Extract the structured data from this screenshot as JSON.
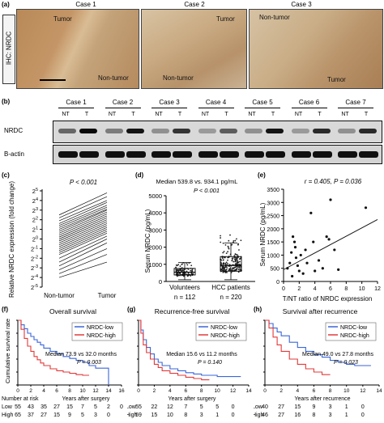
{
  "panel_a": {
    "label": "(a)",
    "ylabel": "IHC: NRDC",
    "cases": [
      {
        "title": "Case 1",
        "labels": [
          "Tumor",
          "Non-tumor"
        ]
      },
      {
        "title": "Case 2",
        "labels": [
          "Tumor",
          "Non-tumor"
        ]
      },
      {
        "title": "Case 3",
        "labels": [
          "Non-tumor",
          "Tumor"
        ]
      }
    ]
  },
  "panel_b": {
    "label": "(b)",
    "cases": [
      "Case 1",
      "Case 2",
      "Case 3",
      "Case 4",
      "Case 5",
      "Case 6",
      "Case 7"
    ],
    "lane_labels": [
      "NT",
      "T"
    ],
    "rows": [
      "NRDC",
      "B-actin"
    ]
  },
  "chart_data": [
    {
      "panel": "(c)",
      "type": "line",
      "title": "P < 0.001",
      "ylabel": "Relative NRDC expression (fold change)",
      "yticks": [
        "2^5",
        "2^4",
        "2^3",
        "2^2",
        "2^1",
        "2^0",
        "2^-1",
        "2^-2",
        "2^-3",
        "2^-4",
        "2^-5"
      ],
      "categories": [
        "Non-tumor",
        "Tumor"
      ],
      "ylim_log2": [
        -5,
        5
      ],
      "pairs_log2": [
        [
          2.5,
          4.8
        ],
        [
          2.2,
          4.4
        ],
        [
          1.9,
          4.0
        ],
        [
          1.6,
          3.8
        ],
        [
          1.4,
          3.5
        ],
        [
          1.2,
          3.3
        ],
        [
          1.0,
          3.1
        ],
        [
          0.8,
          3.0
        ],
        [
          0.6,
          2.8
        ],
        [
          0.4,
          2.6
        ],
        [
          0.2,
          2.4
        ],
        [
          0.0,
          2.2
        ],
        [
          -0.2,
          2.0
        ],
        [
          -0.4,
          1.8
        ],
        [
          -0.6,
          1.6
        ],
        [
          -0.8,
          1.4
        ],
        [
          -1.0,
          1.2
        ],
        [
          -1.2,
          1.0
        ],
        [
          -1.4,
          0.8
        ],
        [
          -1.6,
          0.6
        ],
        [
          -2.0,
          0.3
        ],
        [
          -2.4,
          0.0
        ],
        [
          -2.8,
          -0.4
        ],
        [
          -3.2,
          -1.0
        ],
        [
          -3.6,
          -1.6
        ],
        [
          -4.0,
          -2.4
        ]
      ]
    },
    {
      "panel": "(d)",
      "type": "scatter",
      "title": "Median 539.8 vs. 934.1 pg/mL",
      "subtitle": "P < 0.001",
      "ylabel": "Serum NRDC (pg/mL)",
      "yticks": [
        0,
        1000,
        2000,
        3000,
        4000,
        5000
      ],
      "ylim": [
        0,
        5000
      ],
      "groups": [
        {
          "name": "Volunteers",
          "n_label": "n = 112",
          "median": 539.8,
          "q1": 380,
          "q3": 760,
          "whisker_low": 100,
          "whisker_high": 1100
        },
        {
          "name": "HCC patients",
          "n_label": "n = 220",
          "median": 934.1,
          "q1": 600,
          "q3": 1450,
          "whisker_low": 100,
          "whisker_high": 2250
        }
      ]
    },
    {
      "panel": "(e)",
      "type": "scatter",
      "title": "r = 0.405, P = 0.036",
      "xlabel": "T/NT ratio of NRDC expression",
      "ylabel": "Serum NRDC (pg/mL)",
      "xlim": [
        0,
        12
      ],
      "ylim": [
        0,
        3500
      ],
      "xticks": [
        0,
        2,
        4,
        6,
        8,
        10,
        12
      ],
      "yticks": [
        0,
        500,
        1000,
        1500,
        2000,
        2500,
        3000,
        3500
      ],
      "points": [
        [
          0.5,
          500
        ],
        [
          0.8,
          700
        ],
        [
          1.0,
          1100
        ],
        [
          1.2,
          1700
        ],
        [
          1.4,
          1500
        ],
        [
          1.5,
          1300
        ],
        [
          1.6,
          900
        ],
        [
          1.8,
          600
        ],
        [
          2.0,
          400
        ],
        [
          2.2,
          1000
        ],
        [
          2.5,
          300
        ],
        [
          3.0,
          700
        ],
        [
          3.5,
          2600
        ],
        [
          3.8,
          1500
        ],
        [
          4.0,
          400
        ],
        [
          4.5,
          800
        ],
        [
          5.0,
          500
        ],
        [
          5.5,
          1700
        ],
        [
          6.0,
          3100
        ],
        [
          6.5,
          1200
        ],
        [
          7.0,
          450
        ],
        [
          5.8,
          1600
        ],
        [
          1.1,
          200
        ],
        [
          2.8,
          1200
        ],
        [
          10.5,
          2800
        ]
      ],
      "fit_line": [
        [
          0,
          450
        ],
        [
          12,
          2350
        ]
      ]
    },
    {
      "panel": "(f)",
      "type": "line",
      "title": "Overall survival",
      "ylabel": "Cumulative survival rate",
      "xlabel": "Years after surgery",
      "xlim": [
        0,
        16
      ],
      "ylim": [
        0,
        1
      ],
      "xticks": [
        0,
        2,
        4,
        6,
        8,
        10,
        12,
        14,
        16
      ],
      "annotation": [
        "Median 73.9 vs 32.0 months",
        "P = 0.003"
      ],
      "series": [
        {
          "name": "NRDC-low",
          "color": "#3a66d8",
          "x": [
            0,
            0.5,
            1,
            1.5,
            2,
            2.5,
            3,
            3.5,
            4,
            5,
            6,
            7,
            8,
            9,
            10,
            11,
            12,
            13,
            14
          ],
          "y": [
            1,
            0.93,
            0.87,
            0.8,
            0.75,
            0.7,
            0.66,
            0.62,
            0.57,
            0.52,
            0.48,
            0.44,
            0.41,
            0.38,
            0.35,
            0.3,
            0.26,
            0.26,
            0
          ]
        },
        {
          "name": "NRDC-high",
          "color": "#e23a3a",
          "x": [
            0,
            0.5,
            1,
            1.5,
            2,
            2.5,
            3,
            3.5,
            4,
            5,
            6,
            7,
            8,
            9,
            10,
            11
          ],
          "y": [
            1,
            0.86,
            0.72,
            0.6,
            0.52,
            0.44,
            0.39,
            0.34,
            0.3,
            0.25,
            0.22,
            0.2,
            0.18,
            0.16,
            0.15,
            0.15
          ]
        }
      ],
      "at_risk": {
        "label": "Number at risk",
        "rows": [
          {
            "name": "Low",
            "values": [
              "55",
              "43",
              "35",
              "27",
              "15",
              "7",
              "5",
              "2",
              "0"
            ]
          },
          {
            "name": "High",
            "values": [
              "65",
              "37",
              "27",
              "15",
              "9",
              "5",
              "3",
              "0",
              ""
            ]
          }
        ]
      }
    },
    {
      "panel": "(g)",
      "type": "line",
      "title": "Recurrence-free survival",
      "xlabel": "Years after surgery",
      "xlim": [
        0,
        14
      ],
      "ylim": [
        0,
        1
      ],
      "xticks": [
        0,
        2,
        4,
        6,
        8,
        10,
        12,
        14
      ],
      "annotation": [
        "Median 15.6 vs 11.2 months",
        "P = 0.140"
      ],
      "series": [
        {
          "name": "NRDC-low",
          "color": "#3a66d8",
          "x": [
            0,
            0.3,
            0.6,
            1,
            1.5,
            2,
            2.5,
            3,
            4,
            5,
            6,
            7,
            8,
            9,
            10,
            11,
            12,
            13
          ],
          "y": [
            1,
            0.85,
            0.7,
            0.58,
            0.48,
            0.4,
            0.35,
            0.3,
            0.25,
            0.22,
            0.19,
            0.17,
            0.15,
            0.15,
            0.13,
            0.13,
            0.13,
            0.13
          ]
        },
        {
          "name": "NRDC-high",
          "color": "#e23a3a",
          "x": [
            0,
            0.3,
            0.6,
            1,
            1.5,
            2,
            2.5,
            3,
            4,
            5,
            6,
            7,
            8,
            9
          ],
          "y": [
            1,
            0.8,
            0.62,
            0.5,
            0.4,
            0.32,
            0.27,
            0.22,
            0.18,
            0.15,
            0.12,
            0.1,
            0.08,
            0.08
          ]
        }
      ],
      "at_risk": {
        "label": "",
        "rows": [
          {
            "name": "Low",
            "values": [
              "55",
              "22",
              "12",
              "7",
              "5",
              "5",
              "0"
            ]
          },
          {
            "name": "High",
            "values": [
              "59",
              "15",
              "10",
              "8",
              "3",
              "1",
              "0"
            ]
          }
        ]
      }
    },
    {
      "panel": "(h)",
      "type": "line",
      "title": "Survival after recurrence",
      "xlabel": "Years after recurrence",
      "xlim": [
        0,
        14
      ],
      "ylim": [
        0,
        1
      ],
      "xticks": [
        0,
        2,
        4,
        6,
        8,
        10,
        12,
        14
      ],
      "annotation": [
        "Median 49.0 vs 27.8 months",
        "P = 0.023"
      ],
      "series": [
        {
          "name": "NRDC-low",
          "color": "#3a66d8",
          "x": [
            0,
            0.5,
            1,
            1.5,
            2,
            3,
            4,
            5,
            6,
            7,
            8,
            9,
            10,
            11,
            12,
            13
          ],
          "y": [
            1,
            0.95,
            0.88,
            0.82,
            0.76,
            0.66,
            0.58,
            0.52,
            0.47,
            0.43,
            0.38,
            0.35,
            0.32,
            0.3,
            0.3,
            0.3
          ]
        },
        {
          "name": "NRDC-high",
          "color": "#e23a3a",
          "x": [
            0,
            0.5,
            1,
            1.5,
            2,
            3,
            4,
            5,
            6,
            7,
            8
          ],
          "y": [
            1,
            0.88,
            0.74,
            0.62,
            0.52,
            0.4,
            0.32,
            0.25,
            0.2,
            0.16,
            0.16
          ]
        }
      ],
      "at_risk": {
        "label": "",
        "rows": [
          {
            "name": "Low",
            "values": [
              "40",
              "27",
              "15",
              "9",
              "3",
              "1",
              "0"
            ]
          },
          {
            "name": "High",
            "values": [
              "46",
              "27",
              "16",
              "8",
              "3",
              "1",
              "0"
            ]
          }
        ]
      }
    }
  ]
}
